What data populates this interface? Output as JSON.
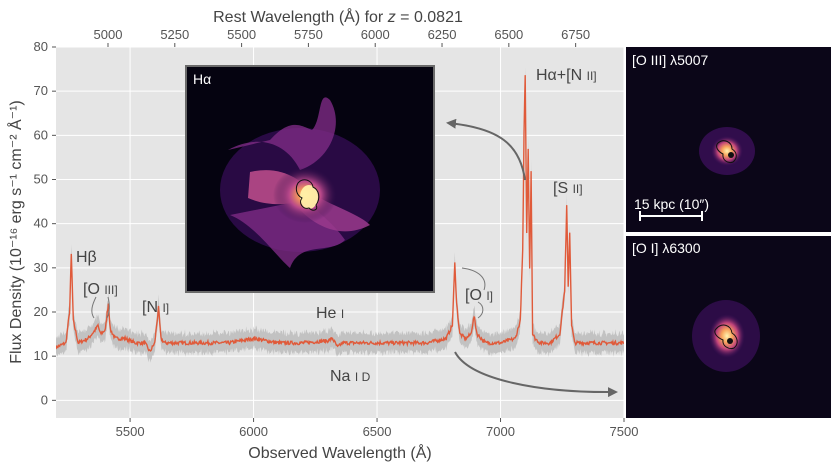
{
  "chart_data": {
    "type": "line",
    "xlabel": "Observed Wavelength (Å)",
    "ylabel": "Flux Density (10⁻¹⁶ erg s⁻¹ cm⁻² Å⁻¹)",
    "top_xlabel_prefix": "Rest Wavelength (Å) for ",
    "top_xlabel_z": "z",
    "top_xlabel_suffix": " = 0.0821",
    "xlim": [
      5200,
      7500
    ],
    "ylim": [
      -4,
      80
    ],
    "redshift": 0.0821,
    "x_ticks": [
      5500,
      6000,
      6500,
      7000,
      7500
    ],
    "x_tick_labels": [
      "5500",
      "6000",
      "6500",
      "7000",
      "7500"
    ],
    "y_ticks": [
      0,
      10,
      20,
      30,
      40,
      50,
      60,
      70,
      80
    ],
    "y_tick_labels": [
      "0",
      "10",
      "20",
      "30",
      "40",
      "50",
      "60",
      "70",
      "80"
    ],
    "top_ticks": [
      5000,
      5250,
      5500,
      5750,
      6000,
      6250,
      6500,
      6750
    ],
    "top_tick_labels": [
      "5000",
      "5250",
      "5500",
      "5750",
      "6000",
      "6250",
      "6500",
      "6750"
    ],
    "grid": true,
    "colors": {
      "spectrum": "#e05a3a",
      "error_band": "#b0b0b0",
      "background": "#e5e5e5",
      "arrow": "#666666"
    },
    "series": [
      {
        "x": [
          5200,
          5240,
          5255,
          5262,
          5270,
          5290,
          5330,
          5360,
          5370,
          5380,
          5400,
          5412,
          5420,
          5440,
          5480,
          5520,
          5560,
          5580,
          5600,
          5615,
          5625,
          5640,
          5700,
          5800,
          5900,
          6000,
          6100,
          6200,
          6300,
          6320,
          6340,
          6360,
          6400,
          6500,
          6600,
          6700,
          6780,
          6805,
          6815,
          6822,
          6835,
          6860,
          6880,
          6893,
          6905,
          6940,
          7000,
          7060,
          7080,
          7090,
          7095,
          7100,
          7106,
          7112,
          7118,
          7124,
          7130,
          7140,
          7160,
          7200,
          7240,
          7260,
          7268,
          7274,
          7280,
          7288,
          7300,
          7350,
          7400,
          7450,
          7500
        ],
        "y": [
          12,
          13,
          20,
          33,
          18,
          13,
          14,
          16,
          17,
          15,
          16,
          22,
          16,
          14,
          14,
          13,
          13,
          11,
          13,
          21,
          14,
          13,
          13,
          13,
          13,
          14,
          13,
          13,
          13.5,
          14,
          12,
          13,
          13,
          13,
          13,
          13,
          14,
          17,
          31,
          22,
          15,
          14,
          15,
          19,
          15,
          13,
          13,
          14,
          18,
          34,
          60,
          74,
          38,
          57,
          30,
          52,
          15,
          14,
          13,
          13,
          15,
          25,
          44,
          26,
          38,
          17,
          13,
          13,
          13,
          13,
          13
        ]
      }
    ],
    "line_labels": {
      "hb": "Hβ",
      "oiii": "[O",
      "oiii_ion": "III]",
      "ni": "[N",
      "ni_ion": "I]",
      "hei": "He",
      "hei_ion": "I",
      "nad": "Na",
      "nad_ion": "I D",
      "oi": "[O",
      "oi_ion": "I]",
      "ha_nii": "Hα+[N",
      "ha_nii_ion": "II]",
      "sii": "[S",
      "sii_ion": "II]"
    }
  },
  "insets": {
    "ha": {
      "label": "Hα"
    },
    "oiii": {
      "label": "[O III] λ5007",
      "scalebar": "15 kpc (10″)"
    },
    "oi": {
      "label": "[O I] λ6300"
    }
  }
}
